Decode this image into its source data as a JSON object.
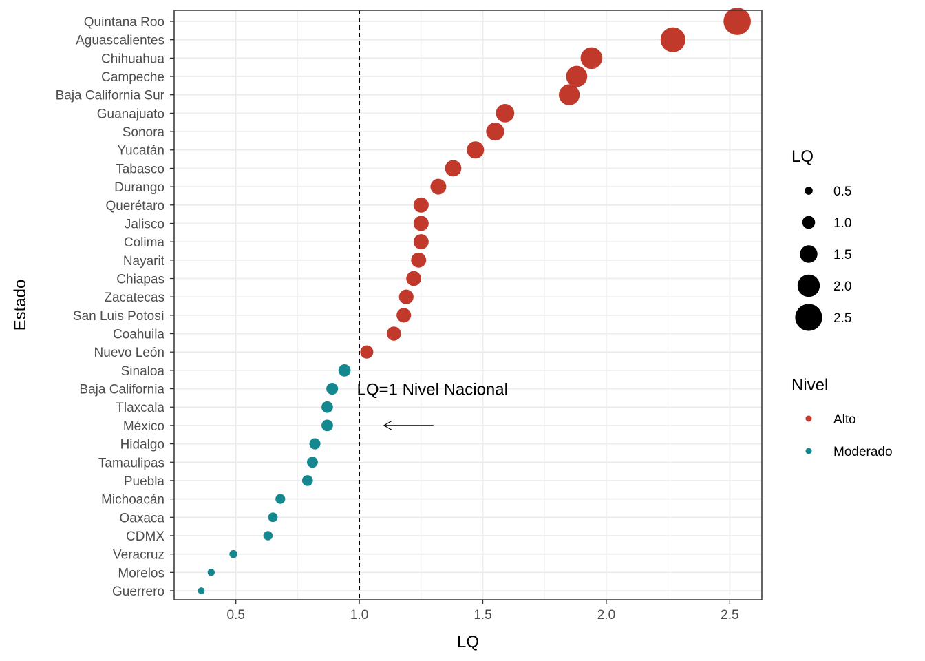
{
  "chart_data": {
    "type": "scatter",
    "title": "",
    "xlabel": "LQ",
    "ylabel": "Estado",
    "xlim": [
      0.25,
      2.63
    ],
    "x_ticks": [
      "0.5",
      "1.0",
      "1.5",
      "2.0",
      "2.5"
    ],
    "grid": true,
    "reference_line": {
      "x": 1.0,
      "style": "dashed"
    },
    "annotation": {
      "text": "LQ=1 Nivel Nacional",
      "arrow_from_x": 1.3,
      "arrow_to_x": 1.1,
      "arrow_y": "México"
    },
    "categories": [
      "Quintana Roo",
      "Aguascalientes",
      "Chihuahua",
      "Campeche",
      "Baja California Sur",
      "Guanajuato",
      "Sonora",
      "Yucatán",
      "Tabasco",
      "Durango",
      "Querétaro",
      "Jalisco",
      "Colima",
      "Nayarit",
      "Chiapas",
      "Zacatecas",
      "San Luis Potosí",
      "Coahuila",
      "Nuevo León",
      "Sinaloa",
      "Baja California",
      "Tlaxcala",
      "México",
      "Hidalgo",
      "Tamaulipas",
      "Puebla",
      "Michoacán",
      "Oaxaca",
      "CDMX",
      "Veracruz",
      "Morelos",
      "Guerrero"
    ],
    "series": [
      {
        "name": "Alto",
        "color": "#c0392b",
        "points": [
          {
            "estado": "Quintana Roo",
            "lq": 2.53
          },
          {
            "estado": "Aguascalientes",
            "lq": 2.27
          },
          {
            "estado": "Chihuahua",
            "lq": 1.94
          },
          {
            "estado": "Campeche",
            "lq": 1.88
          },
          {
            "estado": "Baja California Sur",
            "lq": 1.85
          },
          {
            "estado": "Guanajuato",
            "lq": 1.59
          },
          {
            "estado": "Sonora",
            "lq": 1.55
          },
          {
            "estado": "Yucatán",
            "lq": 1.47
          },
          {
            "estado": "Tabasco",
            "lq": 1.38
          },
          {
            "estado": "Durango",
            "lq": 1.32
          },
          {
            "estado": "Querétaro",
            "lq": 1.25
          },
          {
            "estado": "Jalisco",
            "lq": 1.25
          },
          {
            "estado": "Colima",
            "lq": 1.25
          },
          {
            "estado": "Nayarit",
            "lq": 1.24
          },
          {
            "estado": "Chiapas",
            "lq": 1.22
          },
          {
            "estado": "Zacatecas",
            "lq": 1.19
          },
          {
            "estado": "San Luis Potosí",
            "lq": 1.18
          },
          {
            "estado": "Coahuila",
            "lq": 1.14
          },
          {
            "estado": "Nuevo León",
            "lq": 1.03
          }
        ]
      },
      {
        "name": "Moderado",
        "color": "#14878f",
        "points": [
          {
            "estado": "Sinaloa",
            "lq": 0.94
          },
          {
            "estado": "Baja California",
            "lq": 0.89
          },
          {
            "estado": "Tlaxcala",
            "lq": 0.87
          },
          {
            "estado": "México",
            "lq": 0.87
          },
          {
            "estado": "Hidalgo",
            "lq": 0.82
          },
          {
            "estado": "Tamaulipas",
            "lq": 0.81
          },
          {
            "estado": "Puebla",
            "lq": 0.79
          },
          {
            "estado": "Michoacán",
            "lq": 0.68
          },
          {
            "estado": "Oaxaca",
            "lq": 0.65
          },
          {
            "estado": "CDMX",
            "lq": 0.63
          },
          {
            "estado": "Veracruz",
            "lq": 0.49
          },
          {
            "estado": "Morelos",
            "lq": 0.4
          },
          {
            "estado": "Guerrero",
            "lq": 0.36
          }
        ]
      }
    ],
    "size_legend": {
      "title": "LQ",
      "values": [
        0.5,
        1.0,
        1.5,
        2.0,
        2.5
      ],
      "labels": [
        "0.5",
        "1.0",
        "1.5",
        "2.0",
        "2.5"
      ]
    },
    "color_legend": {
      "title": "Nivel",
      "entries": [
        {
          "label": "Alto",
          "color": "#c0392b"
        },
        {
          "label": "Moderado",
          "color": "#14878f"
        }
      ]
    }
  }
}
